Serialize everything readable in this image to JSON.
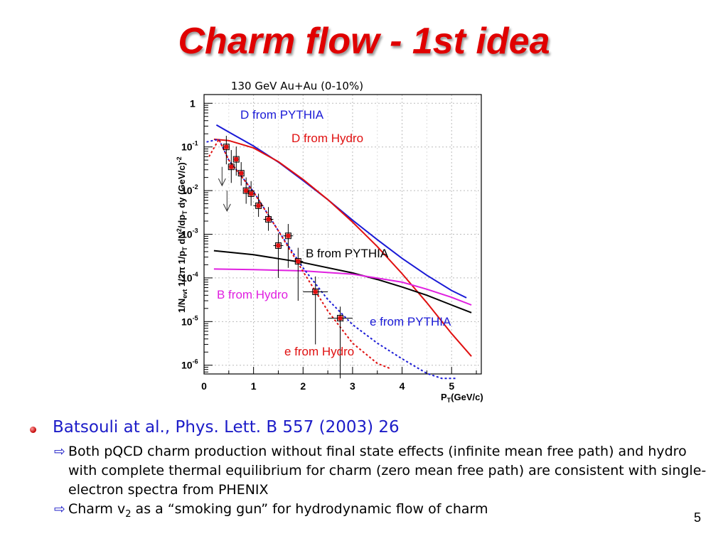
{
  "slide": {
    "title": "Charm flow - 1st idea",
    "page_number": "5",
    "bullet_main": "Batsouli at al., Phys. Lett. B 557 (2003) 26",
    "sub_bullets": [
      "Both pQCD charm production without final state effects (infinite mean free path) and hydro with complete thermal equilibrium for charm (zero mean free path) are consistent with single-electron spectra from PHENIX",
      "Charm v2 as a “smoking gun” for hydrodynamic flow of charm"
    ],
    "sub_bullet_2_parts": {
      "pre": "Charm v",
      "sub": "2",
      "post": " as a “smoking gun” for hydrodynamic flow of charm"
    },
    "arrow_icon": "hollow-right-arrow-icon",
    "bullet_icon": "red-ball-icon"
  },
  "chart_data": {
    "type": "line",
    "title": "130 GeV Au+Au (0-10%)",
    "xlabel": "P_T(GeV/c)",
    "ylabel": "1/N_evt 1/2π 1/p_T dN²/dp_T dy (GeV/c)⁻²",
    "xlim": [
      0,
      5.6
    ],
    "ylim_log10": [
      -6.2,
      0.2
    ],
    "yscale": "log",
    "grid": true,
    "x_ticks": [
      0,
      1,
      2,
      3,
      4,
      5
    ],
    "y_tick_labels": [
      {
        "base": "1",
        "exp": ""
      },
      {
        "base": "10",
        "exp": "-1"
      },
      {
        "base": "10",
        "exp": "-2"
      },
      {
        "base": "10",
        "exp": "-3"
      },
      {
        "base": "10",
        "exp": "-4"
      },
      {
        "base": "10",
        "exp": "-5"
      },
      {
        "base": "10",
        "exp": "-6"
      }
    ],
    "series": [
      {
        "name": "D from PYTHIA",
        "color": "#1a1ad6",
        "style": "solid",
        "x": [
          0.25,
          0.5,
          1.0,
          1.5,
          2.0,
          2.5,
          3.0,
          3.5,
          4.0,
          4.5,
          5.0,
          5.3
        ],
        "y": [
          0.32,
          0.22,
          0.105,
          0.045,
          0.017,
          0.0062,
          0.0021,
          0.00075,
          0.00028,
          0.000115,
          5.15e-05,
          3.5e-05
        ]
      },
      {
        "name": "D from Hydro",
        "color": "#e01010",
        "style": "solid",
        "x": [
          0.2,
          0.5,
          1.0,
          1.5,
          2.0,
          2.5,
          3.0,
          3.5,
          4.0,
          4.5,
          5.0,
          5.4
        ],
        "y": [
          0.15,
          0.14,
          0.095,
          0.046,
          0.018,
          0.0062,
          0.0019,
          0.00052,
          0.000125,
          2.7e-05,
          5.3e-06,
          1.6e-06
        ]
      },
      {
        "name": "B from PYTHIA",
        "color": "#000000",
        "style": "solid",
        "x": [
          0.2,
          1.0,
          2.0,
          3.0,
          3.5,
          4.0,
          4.5,
          5.0,
          5.4
        ],
        "y": [
          0.00042,
          0.00034,
          0.000225,
          0.00013,
          9.2e-05,
          6.2e-05,
          4e-05,
          2.4e-05,
          1.6e-05
        ]
      },
      {
        "name": "B from Hydro",
        "color": "#e020e0",
        "style": "solid",
        "x": [
          0.2,
          1.0,
          2.0,
          3.0,
          4.0,
          4.5,
          5.0,
          5.4
        ],
        "y": [
          0.00016,
          0.000155,
          0.000145,
          0.000122,
          8e-05,
          5.5e-05,
          3.6e-05,
          2.4e-05
        ]
      },
      {
        "name": "e from PYTHIA",
        "color": "#1a1ad6",
        "style": "dotted",
        "x": [
          0.05,
          0.3,
          0.5,
          1.0,
          1.5,
          2.0,
          2.5,
          3.0,
          3.5,
          4.0,
          4.5,
          4.8,
          5.1
        ],
        "y": [
          0.13,
          0.15,
          0.05,
          0.0095,
          0.0012,
          0.00017,
          3.2e-05,
          8.5e-06,
          3.2e-06,
          1.4e-06,
          6.5e-07,
          5e-07,
          5e-07
        ]
      },
      {
        "name": "e from Hydro",
        "color": "#e01010",
        "style": "dotted",
        "x": [
          0.1,
          0.3,
          0.5,
          1.0,
          1.5,
          2.0,
          2.5,
          3.0,
          3.5,
          3.75
        ],
        "y": [
          0.06,
          0.15,
          0.05,
          0.0093,
          0.0012,
          0.00014,
          1.75e-05,
          3.2e-06,
          1.1e-06,
          8.5e-07
        ]
      }
    ],
    "data_points": {
      "name": "PHENIX single electrons",
      "color": "#e01010",
      "x": [
        0.45,
        0.55,
        0.65,
        0.75,
        0.85,
        0.95,
        1.1,
        1.3,
        1.5,
        1.7,
        1.9,
        2.25,
        2.75
      ],
      "y": [
        0.1,
        0.035,
        0.052,
        0.025,
        0.01,
        0.0085,
        0.0045,
        0.0022,
        0.00055,
        0.00092,
        0.00024,
        4.8e-05,
        1.2e-05
      ],
      "y_err_low": [
        0.06,
        0.02,
        0.03,
        0.012,
        0.005,
        0.004,
        0.002,
        0.001,
        0.00045,
        0.00075,
        0.00021,
        4.5e-05,
        1.15e-05
      ],
      "y_err_high": [
        0.08,
        0.05,
        0.05,
        0.02,
        0.01,
        0.008,
        0.004,
        0.002,
        0.0005,
        0.0008,
        0.00025,
        6e-05,
        1e-05
      ],
      "x_err": [
        0.05,
        0.05,
        0.05,
        0.05,
        0.05,
        0.05,
        0.1,
        0.1,
        0.1,
        0.1,
        0.1,
        0.25,
        0.25
      ]
    },
    "upper_limits": {
      "x": [
        0.45,
        0.55
      ],
      "y": [
        0.035,
        0.01
      ],
      "y_low": [
        0.013,
        0.0034
      ]
    },
    "curve_labels": [
      {
        "name": "D from PYTHIA",
        "color": "#1a1ad6"
      },
      {
        "name": "D from Hydro",
        "color": "#e01010"
      },
      {
        "name": "B from PYTHIA",
        "color": "#000000"
      },
      {
        "name": "B from Hydro",
        "color": "#e020e0"
      },
      {
        "name": "e from PYTHIA",
        "color": "#1a1ad6"
      },
      {
        "name": "e from Hydro",
        "color": "#e01010"
      }
    ]
  }
}
